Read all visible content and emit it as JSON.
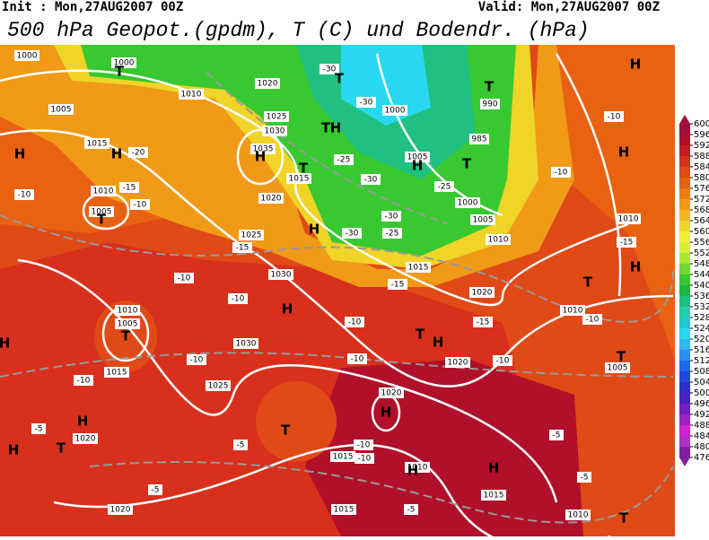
{
  "header": {
    "init": "Init : Mon,27AUG2007 00Z",
    "valid": "Valid: Mon,27AUG2007 00Z",
    "title": "500 hPa Geopot.(gpdm), T (C) und Bodendr. (hPa)"
  },
  "legend": {
    "levels": [
      600,
      596,
      592,
      588,
      584,
      580,
      576,
      572,
      568,
      564,
      560,
      556,
      552,
      548,
      544,
      540,
      536,
      532,
      528,
      524,
      520,
      516,
      512,
      508,
      504,
      500,
      496,
      492,
      488,
      484,
      480,
      476
    ],
    "colors": [
      "#a0103a",
      "#b0102a",
      "#c81a22",
      "#d8301c",
      "#e04a16",
      "#e86212",
      "#f07c10",
      "#f09a18",
      "#f0b820",
      "#f0d428",
      "#f0f030",
      "#d8f030",
      "#a8e830",
      "#70d830",
      "#38c830",
      "#20b840",
      "#20c080",
      "#20d0b0",
      "#20c8d0",
      "#28d8f0",
      "#30b8f0",
      "#2890f0",
      "#2068f0",
      "#2048e0",
      "#3030c8",
      "#4820c0",
      "#7020c0",
      "#a020c8",
      "#d020d0",
      "#b030c0",
      "#8020a0"
    ]
  },
  "map": {
    "pressure_centers": [
      "T",
      "T",
      "T",
      "H",
      "T",
      "H",
      "H",
      "H",
      "H",
      "T",
      "H",
      "T",
      "H",
      "T",
      "H",
      "H",
      "T",
      "H",
      "T",
      "H",
      "T",
      "H",
      "T",
      "H",
      "T",
      "H",
      "T",
      "H",
      "H",
      "H",
      "T"
    ],
    "isobar_labels": [
      1000,
      1000,
      1010,
      1005,
      1015,
      1010,
      1005,
      1020,
      1025,
      1030,
      1035,
      1015,
      1020,
      1025,
      1030,
      1030,
      1020,
      1015,
      1020,
      1015,
      1010,
      1015,
      1010,
      1020,
      1020,
      1010,
      1005,
      1010,
      1010,
      1005,
      1000,
      985,
      990,
      1000,
      1005,
      1015,
      1015,
      1020,
      1025,
      1010,
      1005
    ],
    "temperature_labels": [
      -30,
      -30,
      -25,
      -30,
      -25,
      -30,
      -25,
      -30,
      -20,
      -15,
      -10,
      -10,
      -15,
      -10,
      -10,
      -10,
      -10,
      -10,
      -10,
      -15,
      -15,
      -15,
      -10,
      -10,
      -10,
      -5,
      -5,
      -10,
      -10,
      -5,
      -5,
      -5,
      -5,
      -10
    ]
  }
}
